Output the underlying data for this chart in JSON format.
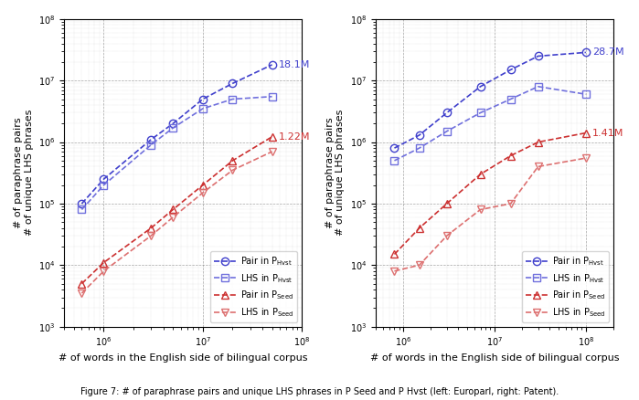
{
  "left": {
    "title": "",
    "xlabel": "# of words in the English side of bilingual corpus",
    "ylabel": "# of paraphrase pairs\n# of unique LHS phrases",
    "x_hvst": [
      600000.0,
      1000000.0,
      3000000.0,
      5000000.0,
      10000000.0,
      20000000.0,
      50000000.0
    ],
    "pair_hvst": [
      100000.0,
      250000.0,
      1100000.0,
      2000000.0,
      5000000.0,
      9000000.0,
      18100000.0
    ],
    "lhs_hvst": [
      80000.0,
      200000.0,
      900000.0,
      1700000.0,
      3500000.0,
      5000000.0,
      5500000.0
    ],
    "x_seed": [
      600000.0,
      1000000.0,
      3000000.0,
      5000000.0,
      10000000.0,
      20000000.0,
      50000000.0
    ],
    "pair_seed": [
      5000.0,
      11000.0,
      40000.0,
      80000.0,
      200000.0,
      500000.0,
      1220000.0
    ],
    "lhs_seed": [
      3500.0,
      8000.0,
      30000.0,
      60000.0,
      150000.0,
      350000.0,
      700000.0
    ],
    "annotation_hvst": "18.1M",
    "annotation_seed": "1.22M",
    "xlim": [
      400000.0,
      100000000.0
    ],
    "ylim": [
      1000.0,
      100000000.0
    ]
  },
  "right": {
    "title": "",
    "xlabel": "# of words in the English side of bilingual corpus",
    "ylabel": "# of paraphrase pairs\n# of unique LHS phrases",
    "x_hvst": [
      800000.0,
      1500000.0,
      3000000.0,
      7000000.0,
      15000000.0,
      30000000.0,
      100000000.0
    ],
    "pair_hvst": [
      800000.0,
      1300000.0,
      3000000.0,
      8000000.0,
      15000000.0,
      25000000.0,
      28700000.0
    ],
    "lhs_hvst": [
      500000.0,
      800000.0,
      1500000.0,
      3000000.0,
      5000000.0,
      8000000.0,
      6000000.0
    ],
    "x_seed": [
      800000.0,
      1500000.0,
      3000000.0,
      7000000.0,
      15000000.0,
      30000000.0,
      100000000.0
    ],
    "pair_seed": [
      15000.0,
      40000.0,
      100000.0,
      300000.0,
      600000.0,
      1000000.0,
      1410000.0
    ],
    "lhs_seed": [
      8000.0,
      10000.0,
      30000.0,
      80000.0,
      100000.0,
      400000.0,
      550000.0
    ],
    "annotation_hvst": "28.7M",
    "annotation_seed": "1.41M",
    "xlim": [
      500000.0,
      200000000.0
    ],
    "ylim": [
      1000.0,
      100000000.0
    ]
  },
  "color_blue": "#4040cc",
  "color_blue_lhs": "#7070dd",
  "color_red": "#cc3030",
  "color_red_lhs": "#dd7070",
  "fig_caption": "Figure 7: # of paraphrase pairs and unique LHS phrases in P Seed and P Hvst (left: Europarl, right: Patent)."
}
